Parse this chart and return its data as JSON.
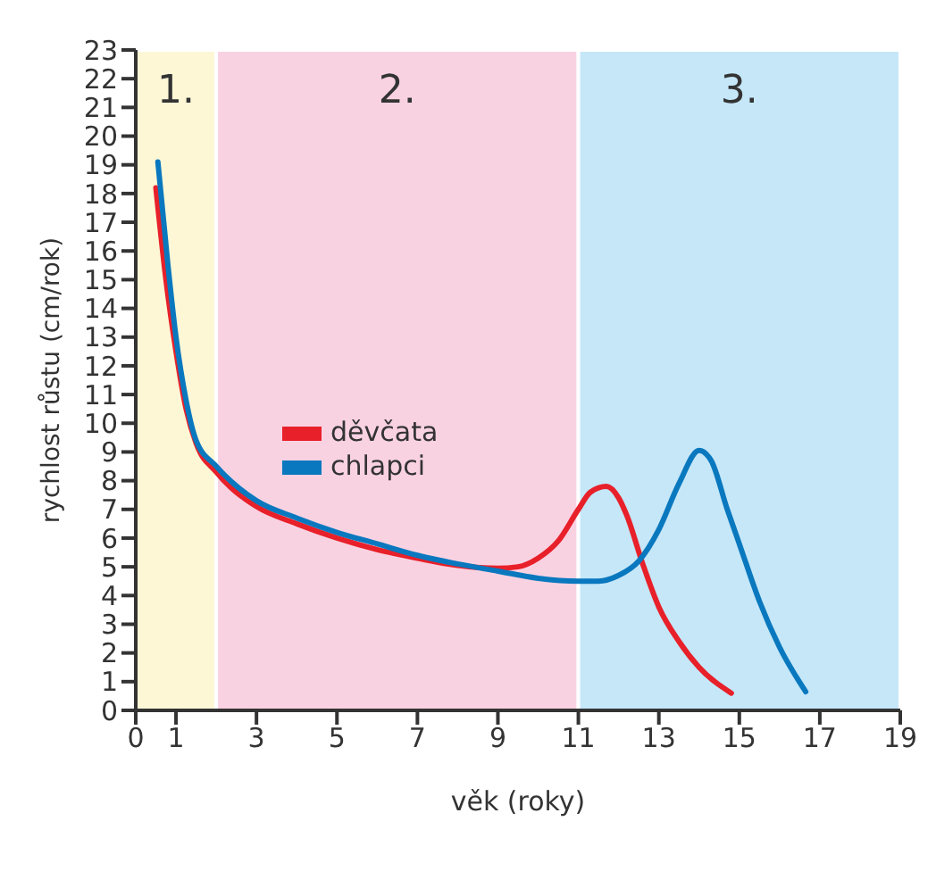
{
  "chart_data": {
    "type": "line",
    "xlabel": "věk (roky)",
    "ylabel": "rychlost růstu (cm/rok)",
    "xlim": [
      0,
      19
    ],
    "xticks": [
      0,
      1,
      3,
      5,
      7,
      9,
      11,
      13,
      15,
      17,
      19
    ],
    "ylim": [
      0,
      23
    ],
    "yticks": [
      0,
      1,
      2,
      3,
      4,
      5,
      6,
      7,
      8,
      9,
      10,
      11,
      12,
      13,
      14,
      15,
      16,
      17,
      18,
      19,
      20,
      21,
      22,
      23
    ],
    "legend": "left",
    "line_style": "solid",
    "bands": [
      {
        "axis": "x",
        "from": 0,
        "to": 2,
        "label": "1.",
        "color": "#fdf7d6"
      },
      {
        "axis": "x",
        "from": 2,
        "to": 11,
        "label": "2.",
        "color": "#f9d2e2"
      },
      {
        "axis": "x",
        "from": 11,
        "to": 19,
        "label": "3.",
        "color": "#c5e7f8"
      }
    ],
    "series": [
      {
        "name": "děvčata",
        "color": "#e8202a",
        "x": [
          0.5,
          0.75,
          1,
          1.25,
          1.5,
          2,
          3,
          4,
          5,
          6,
          7,
          8,
          9,
          9.5,
          10,
          10.5,
          11,
          11.3,
          11.7,
          12,
          12.2,
          12.6,
          13,
          13.5,
          14,
          14.8
        ],
        "values": [
          18.2,
          15,
          12.5,
          10.5,
          9.3,
          8.3,
          7.1,
          6.5,
          6.0,
          5.6,
          5.3,
          5.05,
          4.95,
          5.0,
          5.3,
          5.9,
          7.0,
          7.6,
          7.8,
          7.4,
          6.8,
          5.1,
          3.6,
          2.4,
          1.5,
          0.6
        ]
      },
      {
        "name": "chlapci",
        "color": "#0a78be",
        "x": [
          0.55,
          0.8,
          1,
          1.25,
          1.5,
          2,
          3,
          4,
          5,
          6,
          7,
          8,
          9,
          10,
          11,
          11.5,
          12,
          12.5,
          13,
          13.5,
          14,
          14.3,
          14.7,
          15,
          15.5,
          16,
          16.65
        ],
        "values": [
          19.1,
          15.5,
          13,
          10.8,
          9.4,
          8.5,
          7.3,
          6.7,
          6.2,
          5.8,
          5.4,
          5.1,
          4.85,
          4.6,
          4.5,
          4.5,
          4.7,
          5.2,
          6.3,
          7.9,
          9.05,
          8.7,
          7.0,
          5.8,
          3.8,
          2.2,
          0.65
        ]
      }
    ]
  }
}
